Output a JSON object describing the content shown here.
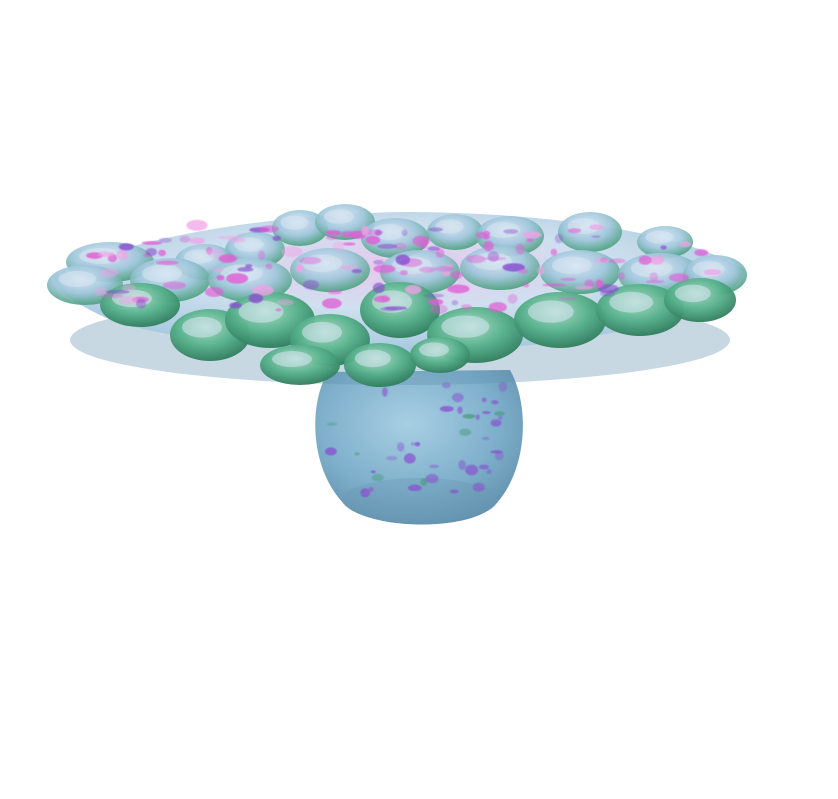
{
  "scene": {
    "background_color": "#ffffff",
    "object": "molecular-surface-render",
    "palette": {
      "body_base": "#7fb0cc",
      "body_shadow": "#5f8fab",
      "cap_base": "#b7d2e6",
      "cap_light": "#d9e6f2",
      "rim_green": "#3f9a73",
      "rim_green_light": "#68c09a",
      "accent_magenta": "#e05fd6",
      "accent_violet": "#8a4fd0",
      "accent_pink": "#f2a2e6"
    }
  }
}
